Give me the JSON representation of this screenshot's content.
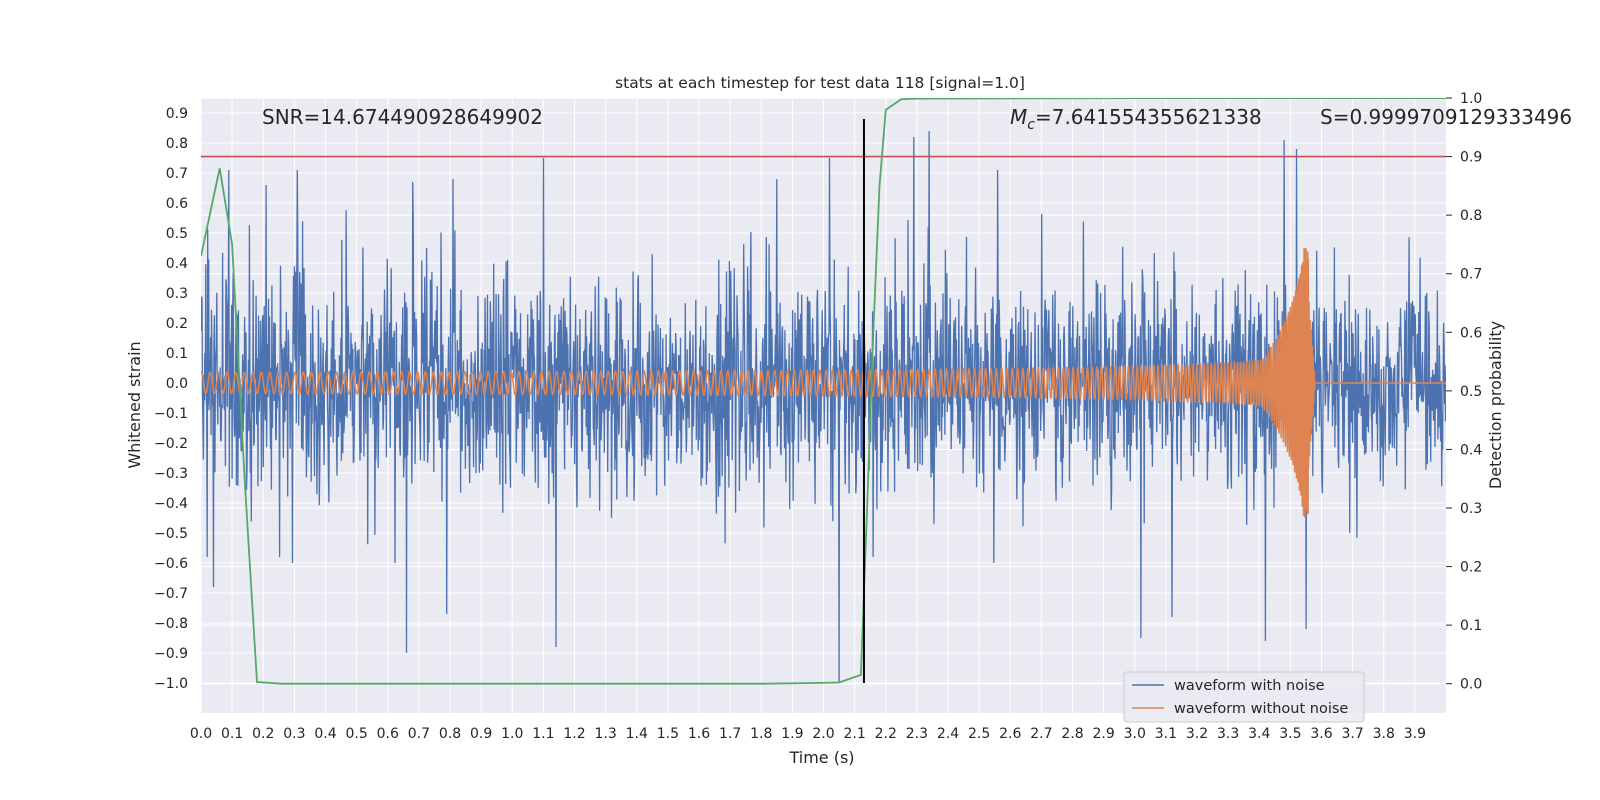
{
  "chart_data": {
    "type": "line",
    "title": "stats at each timestep for test data 118 [signal=1.0]",
    "xlabel": "Time (s)",
    "ylabel_left": "Whitened strain",
    "ylabel_right": "Detection probability",
    "xlim": [
      0.0,
      4.0
    ],
    "ylim_left": [
      -1.1,
      0.95
    ],
    "ylim_right": [
      -0.05,
      1.0
    ],
    "grid": true,
    "x_ticks": [
      "0.0",
      "0.1",
      "0.2",
      "0.3",
      "0.4",
      "0.5",
      "0.6",
      "0.7",
      "0.8",
      "0.9",
      "1.0",
      "1.1",
      "1.2",
      "1.3",
      "1.4",
      "1.5",
      "1.6",
      "1.7",
      "1.8",
      "1.9",
      "2.0",
      "2.1",
      "2.2",
      "2.3",
      "2.4",
      "2.5",
      "2.6",
      "2.7",
      "2.8",
      "2.9",
      "3.0",
      "3.1",
      "3.2",
      "3.3",
      "3.4",
      "3.5",
      "3.6",
      "3.7",
      "3.8",
      "3.9"
    ],
    "y_left_ticks": [
      "0.9",
      "0.8",
      "0.7",
      "0.6",
      "0.5",
      "0.4",
      "0.3",
      "0.2",
      "0.1",
      "0.0",
      "−0.1",
      "−0.2",
      "−0.3",
      "−0.4",
      "−0.5",
      "−0.6",
      "−0.7",
      "−0.8",
      "−0.9",
      "−1.0"
    ],
    "y_left_tick_values": [
      0.9,
      0.8,
      0.7,
      0.6,
      0.5,
      0.4,
      0.3,
      0.2,
      0.1,
      0.0,
      -0.1,
      -0.2,
      -0.3,
      -0.4,
      -0.5,
      -0.6,
      -0.7,
      -0.8,
      -0.9,
      -1.0
    ],
    "y_right_ticks": [
      "1.0",
      "0.9",
      "0.8",
      "0.7",
      "0.6",
      "0.5",
      "0.4",
      "0.3",
      "0.2",
      "0.1",
      "0.0"
    ],
    "y_right_tick_values": [
      1.0,
      0.9,
      0.8,
      0.7,
      0.6,
      0.5,
      0.4,
      0.3,
      0.2,
      0.1,
      0.0
    ],
    "annotations": {
      "snr": "SNR=14.674490928649902",
      "mc_symbol": "M",
      "mc_subscript": "c",
      "mc_value": "=7.641554355621338",
      "s": "S=0.9999709129333496"
    },
    "threshold_line": {
      "value": 0.9,
      "axis": "right",
      "color": "#c44e52"
    },
    "vertical_marker": {
      "x": 2.13,
      "ymin": -1.0,
      "ymax": 0.88,
      "color": "#000000"
    },
    "series": [
      {
        "name": "waveform with noise",
        "color": "#4c72b0",
        "axis": "left",
        "noise_std": 0.18,
        "spikes": [
          {
            "x": 0.09,
            "y": 0.71
          },
          {
            "x": 0.21,
            "y": 0.66
          },
          {
            "x": 0.31,
            "y": 0.71
          },
          {
            "x": 0.68,
            "y": 0.67
          },
          {
            "x": 0.81,
            "y": 0.68
          },
          {
            "x": 1.1,
            "y": 0.75
          },
          {
            "x": 1.85,
            "y": 0.68
          },
          {
            "x": 2.02,
            "y": 0.75
          },
          {
            "x": 2.29,
            "y": 0.82
          },
          {
            "x": 2.34,
            "y": 0.84
          },
          {
            "x": 2.56,
            "y": 0.71
          },
          {
            "x": 3.48,
            "y": 0.81
          },
          {
            "x": 3.52,
            "y": 0.78
          },
          {
            "x": 0.66,
            "y": -0.9
          },
          {
            "x": 0.79,
            "y": -0.77
          },
          {
            "x": 1.14,
            "y": -0.88
          },
          {
            "x": 2.05,
            "y": -1.0
          },
          {
            "x": 2.16,
            "y": -0.58
          },
          {
            "x": 3.02,
            "y": -0.85
          },
          {
            "x": 3.12,
            "y": -0.78
          },
          {
            "x": 3.42,
            "y": -0.86
          },
          {
            "x": 3.55,
            "y": -0.82
          },
          {
            "x": 0.02,
            "y": -0.58
          },
          {
            "x": 0.04,
            "y": -0.68
          }
        ]
      },
      {
        "name": "waveform without noise",
        "color": "#dd8452",
        "axis": "left",
        "merger_time": 3.56,
        "amplitude_start": 0.035,
        "amplitude_peak": 0.45
      },
      {
        "name": "detection probability",
        "color": "#55a868",
        "axis": "right",
        "x": [
          0.0,
          0.02,
          0.06,
          0.1,
          0.14,
          0.18,
          0.26,
          0.5,
          1.0,
          1.5,
          1.8,
          1.95,
          2.05,
          2.12,
          2.14,
          2.16,
          2.18,
          2.2,
          2.25,
          2.3,
          3.0,
          4.0
        ],
        "y": [
          0.73,
          0.78,
          0.88,
          0.75,
          0.35,
          0.003,
          0.0,
          0.0,
          0.0,
          0.0,
          0.0,
          0.001,
          0.002,
          0.015,
          0.3,
          0.6,
          0.85,
          0.98,
          0.998,
          0.999,
          0.9999,
          0.9999
        ]
      }
    ],
    "legend": {
      "position": "lower-right",
      "entries": [
        "waveform with noise",
        "waveform without noise"
      ]
    }
  }
}
